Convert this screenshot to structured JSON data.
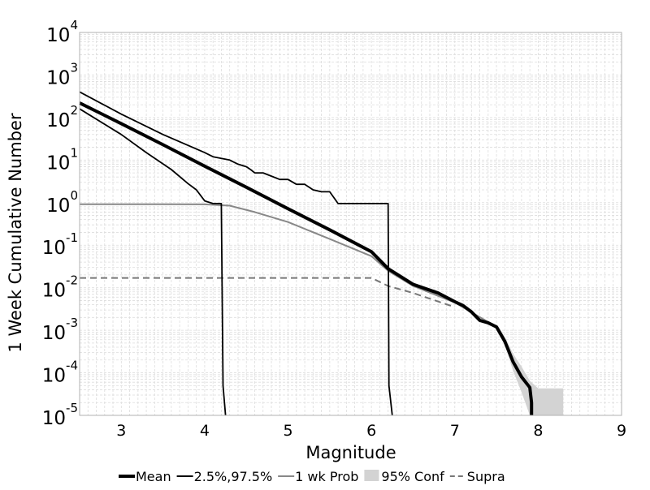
{
  "chart_data": {
    "type": "line",
    "xlabel": "Magnitude",
    "ylabel": "1 Week Cumulative Number",
    "xlim": [
      2.5,
      9
    ],
    "ylim": [
      1e-05,
      10000
    ],
    "yscale": "log",
    "xticks": [
      3,
      4,
      5,
      6,
      7,
      8,
      9
    ],
    "xtick_labels": [
      "3",
      "4",
      "5",
      "6",
      "7",
      "8",
      "9"
    ],
    "ytick_exponents": [
      -5,
      -4,
      -3,
      -2,
      -1,
      0,
      1,
      2,
      3,
      4
    ],
    "ytick_base": "10",
    "grid": true,
    "legend_position": "bottom",
    "colors": {
      "mean": "#000000",
      "bounds": "#000000",
      "prob": "#888888",
      "conf": "#d3d3d3",
      "supra": "#777777",
      "grid": "#dddddd"
    },
    "legend": [
      {
        "key": "mean",
        "label": "Mean"
      },
      {
        "key": "bounds",
        "label": "2.5%,97.5%"
      },
      {
        "key": "prob",
        "label": "1 wk Prob"
      },
      {
        "key": "conf",
        "label": "95% Conf"
      },
      {
        "key": "supra",
        "label": "Supra"
      }
    ],
    "series": [
      {
        "key": "mean",
        "name": "Mean",
        "style": "line",
        "x": [
          2.5,
          3.0,
          3.5,
          4.0,
          4.5,
          5.0,
          5.5,
          6.0,
          6.2,
          6.5,
          6.8,
          7.0,
          7.1,
          7.2,
          7.3,
          7.4,
          7.5,
          7.6,
          7.7,
          7.8,
          7.9,
          7.92,
          7.92
        ],
        "y": [
          220,
          72,
          23,
          7.2,
          2.3,
          0.72,
          0.23,
          0.07,
          0.028,
          0.012,
          0.0075,
          0.0047,
          0.0038,
          0.0027,
          0.0017,
          0.0015,
          0.0012,
          0.00055,
          0.00018,
          8e-05,
          4.5e-05,
          2e-05,
          1e-05
        ]
      },
      {
        "key": "bounds",
        "name": "97.5%",
        "style": "line",
        "x": [
          2.5,
          3.0,
          3.5,
          4.0,
          4.1,
          4.3,
          4.4,
          4.5,
          4.55,
          4.6,
          4.7,
          4.8,
          4.9,
          5.0,
          5.1,
          5.2,
          5.3,
          5.4,
          5.5,
          5.6,
          5.8,
          6.0,
          6.2,
          6.21,
          6.25
        ],
        "y": [
          400,
          120,
          40,
          15,
          12,
          10,
          8,
          7,
          6,
          5,
          5,
          4.2,
          3.5,
          3.5,
          2.7,
          2.7,
          2.0,
          1.8,
          1.8,
          0.95,
          0.95,
          0.95,
          0.95,
          5e-05,
          1e-05
        ]
      },
      {
        "key": "bounds",
        "name": "2.5%",
        "style": "line",
        "x": [
          2.5,
          3.0,
          3.3,
          3.6,
          3.8,
          3.9,
          4.0,
          4.1,
          4.2,
          4.22,
          4.25
        ],
        "y": [
          160,
          40,
          15,
          6,
          2.8,
          2.0,
          1.1,
          0.95,
          0.95,
          5e-05,
          1e-05
        ]
      },
      {
        "key": "prob",
        "name": "1 wk Prob",
        "style": "line",
        "x": [
          2.5,
          3.0,
          3.5,
          4.0,
          4.3,
          4.6,
          5.0,
          5.5,
          6.0,
          6.2,
          6.5,
          7.0,
          7.5
        ],
        "y": [
          0.92,
          0.92,
          0.92,
          0.91,
          0.85,
          0.6,
          0.35,
          0.14,
          0.055,
          0.025,
          0.011,
          0.0045,
          0.0012
        ]
      },
      {
        "key": "supra",
        "name": "Supra",
        "style": "dashed",
        "x": [
          2.5,
          3.0,
          4.0,
          5.0,
          6.0,
          6.2,
          6.5,
          7.0
        ],
        "y": [
          0.017,
          0.017,
          0.017,
          0.017,
          0.017,
          0.011,
          0.0075,
          0.0035
        ]
      },
      {
        "key": "conf",
        "name": "95% Conf",
        "style": "area",
        "x": [
          7.5,
          7.6,
          7.7,
          7.8,
          7.9,
          8.0,
          8.3
        ],
        "upper": [
          0.0014,
          0.0007,
          0.00028,
          0.00014,
          6.5e-05,
          4.3e-05,
          4.3e-05
        ],
        "lower": [
          0.001,
          0.00045,
          0.00011,
          3.5e-05,
          1e-05,
          1e-05,
          1e-05
        ]
      }
    ]
  }
}
